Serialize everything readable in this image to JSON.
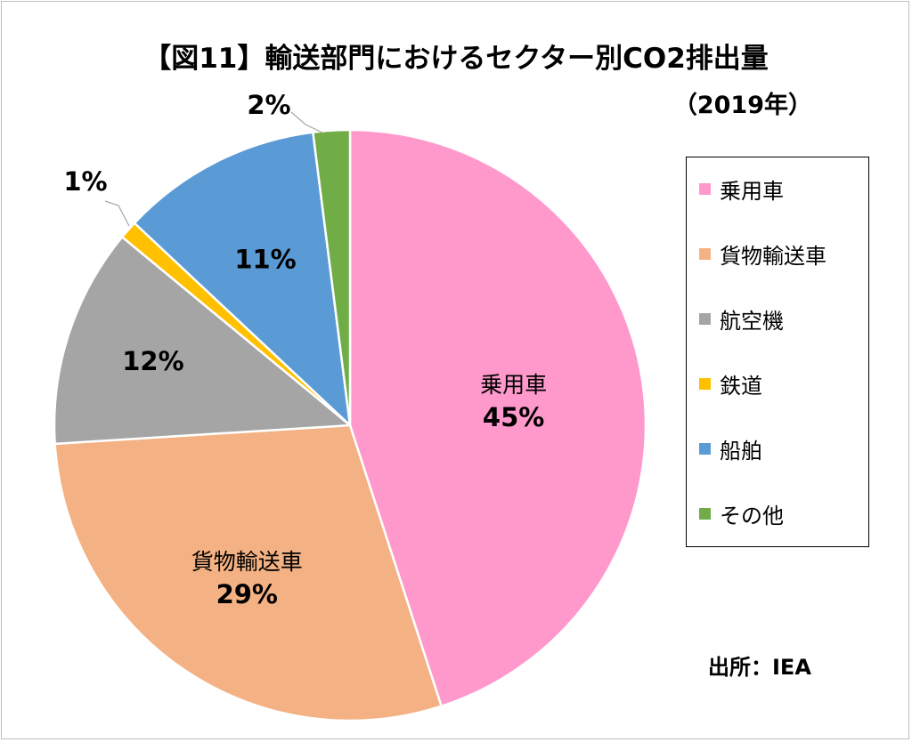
{
  "title": "【図11】輸送部門におけるセクター別CO2排出量",
  "subtitle": "（2019年）",
  "source": "出所：IEA",
  "chart_data": {
    "type": "pie",
    "title": "【図11】輸送部門におけるセクター別CO2排出量",
    "subtitle": "（2019年）",
    "legend_position": "right",
    "slices": [
      {
        "label": "乗用車",
        "value": 45,
        "display": "45%",
        "color": "#FF99CC"
      },
      {
        "label": "貨物輸送車",
        "value": 29,
        "display": "29%",
        "color": "#F4B183"
      },
      {
        "label": "航空機",
        "value": 12,
        "display": "12%",
        "color": "#A5A5A5"
      },
      {
        "label": "鉄道",
        "value": 1,
        "display": "1%",
        "color": "#FFC000"
      },
      {
        "label": "船舶",
        "value": 11,
        "display": "11%",
        "color": "#5B9BD5"
      },
      {
        "label": "その他",
        "value": 2,
        "display": "2%",
        "color": "#70AD47"
      }
    ]
  }
}
